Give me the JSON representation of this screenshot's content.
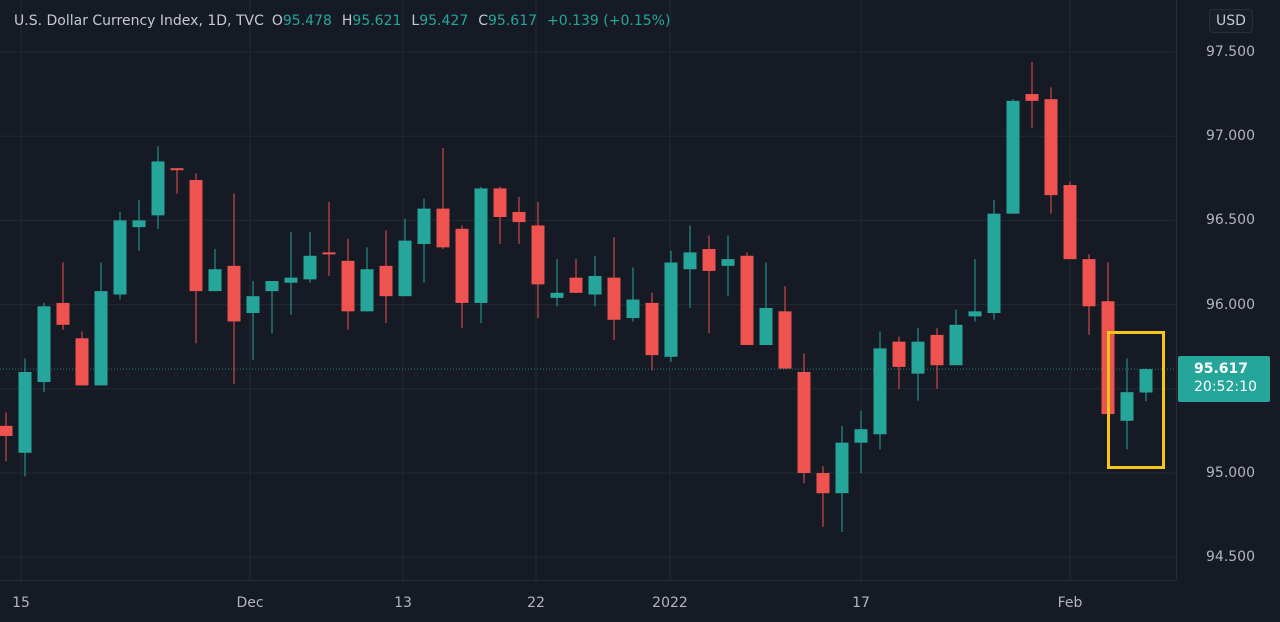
{
  "legend": {
    "title": "U.S. Dollar Currency Index, 1D, TVC",
    "open_label": "O",
    "open": "95.478",
    "high_label": "H",
    "high": "95.621",
    "low_label": "L",
    "low": "95.427",
    "close_label": "C",
    "close": "95.617",
    "change": "+0.139 (+0.15%)"
  },
  "price_axis": {
    "currency": "USD",
    "ticks": [
      "97.500",
      "97.000",
      "96.500",
      "96.000",
      "95.000",
      "94.500"
    ],
    "last_price": "95.617",
    "countdown": "20:52:10"
  },
  "time_axis": {
    "ticks": [
      "15",
      "Dec",
      "13",
      "22",
      "2022",
      "17",
      "Feb"
    ]
  },
  "colors": {
    "up": "#26a69a",
    "down": "#ef5350",
    "background": "#161a25",
    "grid": "#242833",
    "highlight": "#f5c518"
  },
  "chart_data": {
    "type": "candlestick",
    "title": "U.S. Dollar Currency Index, 1D, TVC",
    "xlabel": "",
    "ylabel": "USD",
    "ylim": [
      94.35,
      97.65
    ],
    "y_ticks": [
      94.5,
      95.0,
      95.5,
      96.0,
      96.5,
      97.0,
      97.5
    ],
    "x_tick_labels": [
      "15",
      "Dec",
      "13",
      "22",
      "2022",
      "17",
      "Feb"
    ],
    "grid": true,
    "last_price": 95.617,
    "highlight": "last two candles boxed in yellow",
    "candles": [
      {
        "o": 95.28,
        "h": 95.36,
        "l": 95.07,
        "c": 95.22
      },
      {
        "o": 95.12,
        "h": 95.68,
        "l": 94.98,
        "c": 95.6
      },
      {
        "o": 95.54,
        "h": 96.01,
        "l": 95.48,
        "c": 95.99
      },
      {
        "o": 96.01,
        "h": 96.25,
        "l": 95.85,
        "c": 95.88
      },
      {
        "o": 95.8,
        "h": 95.84,
        "l": 95.52,
        "c": 95.52
      },
      {
        "o": 95.52,
        "h": 96.25,
        "l": 95.52,
        "c": 96.08
      },
      {
        "o": 96.06,
        "h": 96.55,
        "l": 96.03,
        "c": 96.5
      },
      {
        "o": 96.46,
        "h": 96.62,
        "l": 96.32,
        "c": 96.5
      },
      {
        "o": 96.53,
        "h": 96.94,
        "l": 96.45,
        "c": 96.85
      },
      {
        "o": 96.81,
        "h": 96.81,
        "l": 96.66,
        "c": 96.8
      },
      {
        "o": 96.74,
        "h": 96.78,
        "l": 95.77,
        "c": 96.08
      },
      {
        "o": 96.08,
        "h": 96.33,
        "l": 96.08,
        "c": 96.21
      },
      {
        "o": 96.23,
        "h": 96.66,
        "l": 95.53,
        "c": 95.9
      },
      {
        "o": 95.95,
        "h": 96.14,
        "l": 95.67,
        "c": 96.05
      },
      {
        "o": 96.08,
        "h": 96.14,
        "l": 95.83,
        "c": 96.14
      },
      {
        "o": 96.13,
        "h": 96.43,
        "l": 95.94,
        "c": 96.16
      },
      {
        "o": 96.15,
        "h": 96.43,
        "l": 96.13,
        "c": 96.29
      },
      {
        "o": 96.31,
        "h": 96.61,
        "l": 96.17,
        "c": 96.3
      },
      {
        "o": 96.26,
        "h": 96.39,
        "l": 95.85,
        "c": 95.96
      },
      {
        "o": 95.96,
        "h": 96.34,
        "l": 95.96,
        "c": 96.21
      },
      {
        "o": 96.23,
        "h": 96.44,
        "l": 95.89,
        "c": 96.05
      },
      {
        "o": 96.05,
        "h": 96.51,
        "l": 96.05,
        "c": 96.38
      },
      {
        "o": 96.36,
        "h": 96.63,
        "l": 96.13,
        "c": 96.57
      },
      {
        "o": 96.57,
        "h": 96.93,
        "l": 96.33,
        "c": 96.34
      },
      {
        "o": 96.45,
        "h": 96.47,
        "l": 95.86,
        "c": 96.01
      },
      {
        "o": 96.01,
        "h": 96.7,
        "l": 95.89,
        "c": 96.69
      },
      {
        "o": 96.69,
        "h": 96.7,
        "l": 96.36,
        "c": 96.52
      },
      {
        "o": 96.55,
        "h": 96.64,
        "l": 96.36,
        "c": 96.49
      },
      {
        "o": 96.47,
        "h": 96.61,
        "l": 95.92,
        "c": 96.12
      },
      {
        "o": 96.04,
        "h": 96.27,
        "l": 95.99,
        "c": 96.07
      },
      {
        "o": 96.16,
        "h": 96.27,
        "l": 96.07,
        "c": 96.07
      },
      {
        "o": 96.06,
        "h": 96.29,
        "l": 95.99,
        "c": 96.17
      },
      {
        "o": 96.16,
        "h": 96.4,
        "l": 95.79,
        "c": 95.91
      },
      {
        "o": 95.92,
        "h": 96.22,
        "l": 95.9,
        "c": 96.03
      },
      {
        "o": 96.01,
        "h": 96.07,
        "l": 95.61,
        "c": 95.7
      },
      {
        "o": 95.69,
        "h": 96.32,
        "l": 95.66,
        "c": 96.25
      },
      {
        "o": 96.21,
        "h": 96.47,
        "l": 95.98,
        "c": 96.31
      },
      {
        "o": 96.33,
        "h": 96.41,
        "l": 95.83,
        "c": 96.2
      },
      {
        "o": 96.23,
        "h": 96.41,
        "l": 96.05,
        "c": 96.27
      },
      {
        "o": 96.29,
        "h": 96.31,
        "l": 95.76,
        "c": 95.76
      },
      {
        "o": 95.76,
        "h": 96.25,
        "l": 95.76,
        "c": 95.98
      },
      {
        "o": 95.96,
        "h": 96.11,
        "l": 95.62,
        "c": 95.62
      },
      {
        "o": 95.6,
        "h": 95.71,
        "l": 94.94,
        "c": 95.0
      },
      {
        "o": 95.0,
        "h": 95.04,
        "l": 94.68,
        "c": 94.88
      },
      {
        "o": 94.88,
        "h": 95.28,
        "l": 94.65,
        "c": 95.18
      },
      {
        "o": 95.18,
        "h": 95.37,
        "l": 95.0,
        "c": 95.26
      },
      {
        "o": 95.23,
        "h": 95.84,
        "l": 95.14,
        "c": 95.74
      },
      {
        "o": 95.78,
        "h": 95.81,
        "l": 95.5,
        "c": 95.63
      },
      {
        "o": 95.59,
        "h": 95.86,
        "l": 95.43,
        "c": 95.78
      },
      {
        "o": 95.82,
        "h": 95.86,
        "l": 95.5,
        "c": 95.64
      },
      {
        "o": 95.64,
        "h": 95.97,
        "l": 95.64,
        "c": 95.88
      },
      {
        "o": 95.93,
        "h": 96.27,
        "l": 95.9,
        "c": 95.96
      },
      {
        "o": 95.95,
        "h": 96.62,
        "l": 95.91,
        "c": 96.54
      },
      {
        "o": 96.54,
        "h": 97.22,
        "l": 96.54,
        "c": 97.21
      },
      {
        "o": 97.25,
        "h": 97.44,
        "l": 97.05,
        "c": 97.21
      },
      {
        "o": 97.22,
        "h": 97.29,
        "l": 96.54,
        "c": 96.65
      },
      {
        "o": 96.71,
        "h": 96.73,
        "l": 96.27,
        "c": 96.27
      },
      {
        "o": 96.27,
        "h": 96.3,
        "l": 95.82,
        "c": 95.99
      },
      {
        "o": 96.02,
        "h": 96.25,
        "l": 95.35,
        "c": 95.35
      },
      {
        "o": 95.31,
        "h": 95.68,
        "l": 95.14,
        "c": 95.48
      },
      {
        "o": 95.478,
        "h": 95.621,
        "l": 95.427,
        "c": 95.617
      }
    ]
  }
}
